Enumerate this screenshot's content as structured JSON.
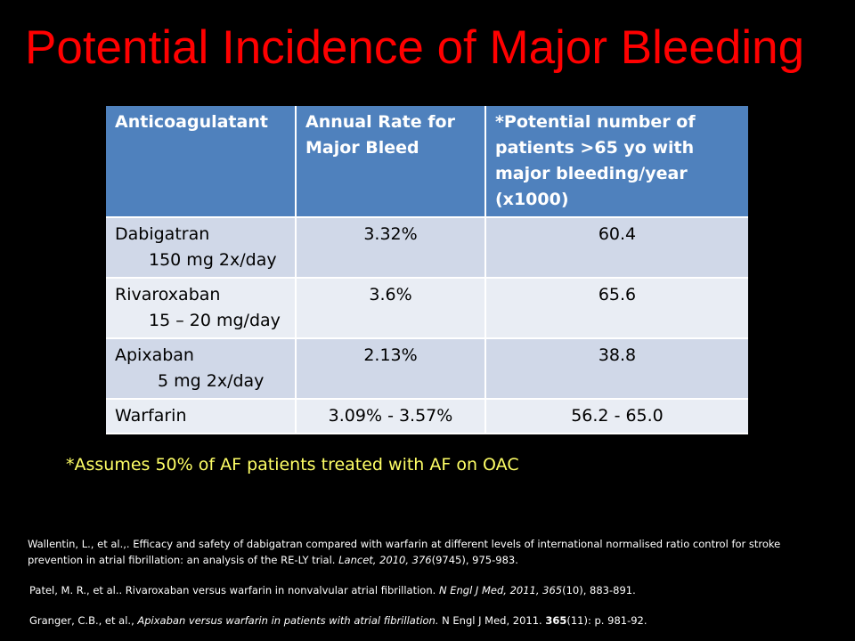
{
  "title": "Potential Incidence of Major Bleeding",
  "table": {
    "headers": [
      "Anticoagulatant",
      "Annual Rate for Major Bleed",
      "*Potential number of patients >65 yo with major bleeding/year (x1000)"
    ],
    "rows": [
      {
        "drug": "Dabigatran",
        "dose": "150 mg 2x/day",
        "rate": "3.32%",
        "patients": "60.4"
      },
      {
        "drug": "Rivaroxaban",
        "dose": "15 – 20 mg/day",
        "rate": "3.6%",
        "patients": "65.6"
      },
      {
        "drug": "Apixaban",
        "dose": "5 mg 2x/day",
        "rate": "2.13%",
        "patients": "38.8"
      },
      {
        "drug": "Warfarin",
        "dose": "",
        "rate": "3.09% - 3.57%",
        "patients": "56.2 - 65.0"
      }
    ]
  },
  "footnote": "*Assumes 50% of AF patients treated with AF on OAC",
  "references": [
    {
      "text": "Wallentin, L., et al.,. Efficacy and safety of dabigatran compared with warfarin at different levels of international normalised ratio control for stroke prevention in atrial fibrillation: an analysis of the RE-LY trial. ",
      "journal": "Lancet, 2010, 376",
      "issue": "(9745), 975-983."
    },
    {
      "text": "Patel, M. R., et al.. Rivaroxaban versus warfarin in nonvalvular atrial fibrillation. ",
      "journal": "N Engl J Med, 2011, 365",
      "issue": "(10), 883-891."
    },
    {
      "authors": "Granger, C.B., et al., ",
      "title_italic": "Apixaban versus warfarin in patients with atrial fibrillation.",
      "journal_plain": " N Engl J Med, 2011. ",
      "volume": "365",
      "issue": "(11): p. 981-92."
    }
  ],
  "colors": {
    "background": "#000000",
    "title": "#ff0000",
    "header_fill": "#4f81bd",
    "band_fill": "#d0d8e8",
    "plain_fill": "#e9edf4",
    "footnote": "#ffff66"
  }
}
